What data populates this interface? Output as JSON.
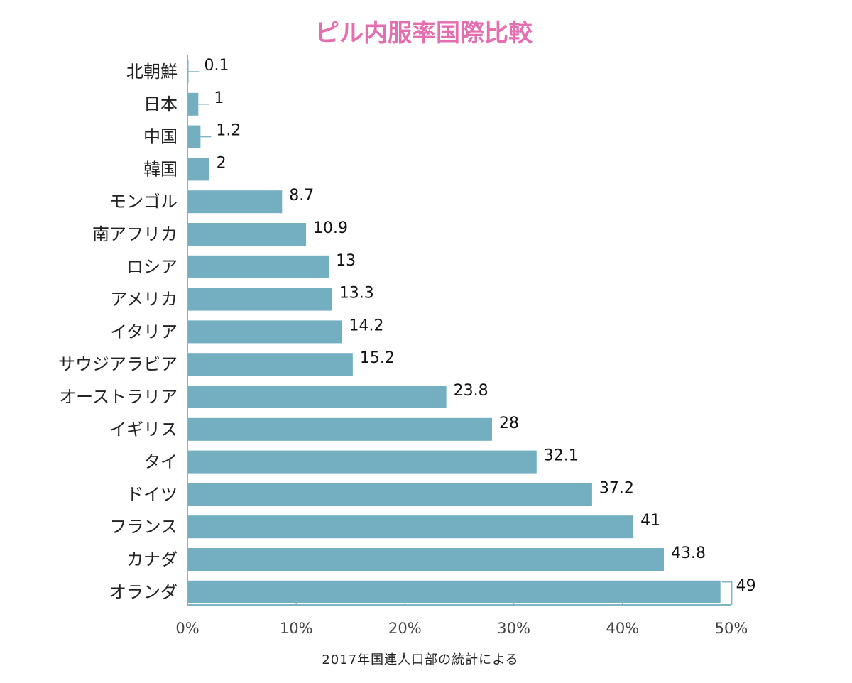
{
  "chart_data": {
    "type": "bar",
    "orientation": "horizontal",
    "title": "ピル内服率国際比較",
    "source_note": "2017年国連人口部の統計による",
    "categories": [
      "北朝鮮",
      "日本",
      "中国",
      "韓国",
      "モンゴル",
      "南アフリカ",
      "ロシア",
      "アメリカ",
      "イタリア",
      "サウジアラビア",
      "オーストラリア",
      "イギリス",
      "タイ",
      "ドイツ",
      "フランス",
      "カナダ",
      "オランダ"
    ],
    "values": [
      0.1,
      1,
      1.2,
      2,
      8.7,
      10.9,
      13,
      13.3,
      14.2,
      15.2,
      23.8,
      28,
      32.1,
      37.2,
      41,
      43.8,
      49
    ],
    "value_labels": [
      "0.1",
      "1",
      "1.2",
      "2",
      "8.7",
      "10.9",
      "13",
      "13.3",
      "14.2",
      "15.2",
      "23.8",
      "28",
      "32.1",
      "37.2",
      "41",
      "43.8",
      "49"
    ],
    "xlim": [
      0,
      50
    ],
    "xticks": [
      0,
      10,
      20,
      30,
      40,
      50
    ],
    "xtick_labels": [
      "0%",
      "10%",
      "20%",
      "30%",
      "40%",
      "50%"
    ],
    "xlabel": "",
    "ylabel": "",
    "grid": false,
    "legend": false
  },
  "colors": {
    "bar": "#73afc0",
    "axis": "#7fb6c6",
    "title": "#e36fb0"
  }
}
